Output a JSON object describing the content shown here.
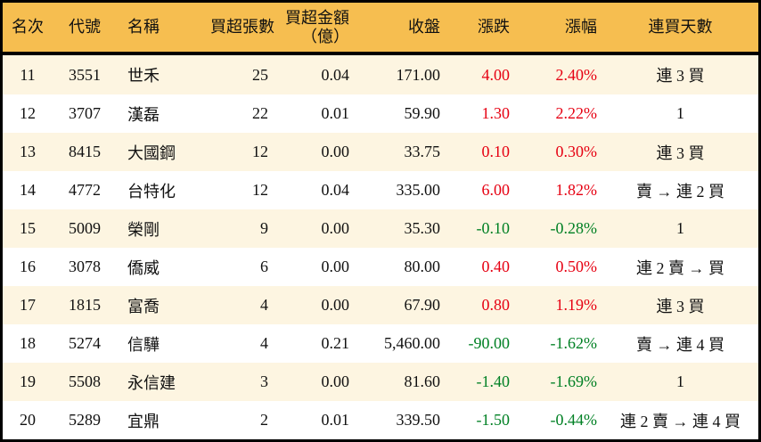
{
  "colors": {
    "up": "#e60012",
    "down": "#008024",
    "header_bg": "#f6be50",
    "row_alt_bg": "#fdf5e1",
    "border": "#000000"
  },
  "chart_data": {
    "type": "table",
    "columns": [
      {
        "key": "rank",
        "label": "名次"
      },
      {
        "key": "code",
        "label": "代號"
      },
      {
        "key": "name",
        "label": "名稱"
      },
      {
        "key": "volume",
        "label": "買超張數"
      },
      {
        "key": "amount",
        "label": "買超金額",
        "label2": "（億）"
      },
      {
        "key": "close",
        "label": "收盤"
      },
      {
        "key": "change",
        "label": "漲跌"
      },
      {
        "key": "pct",
        "label": "漲幅"
      },
      {
        "key": "days",
        "label": "連買天數"
      }
    ],
    "rows": [
      {
        "rank": "11",
        "code": "3551",
        "name": "世禾",
        "volume": "25",
        "amount": "0.04",
        "close": "171.00",
        "change": "4.00",
        "pct": "2.40%",
        "days": "連 3 買",
        "trend": "up"
      },
      {
        "rank": "12",
        "code": "3707",
        "name": "漢磊",
        "volume": "22",
        "amount": "0.01",
        "close": "59.90",
        "change": "1.30",
        "pct": "2.22%",
        "days": "1",
        "trend": "up"
      },
      {
        "rank": "13",
        "code": "8415",
        "name": "大國鋼",
        "volume": "12",
        "amount": "0.00",
        "close": "33.75",
        "change": "0.10",
        "pct": "0.30%",
        "days": "連 3 買",
        "trend": "up"
      },
      {
        "rank": "14",
        "code": "4772",
        "name": "台特化",
        "volume": "12",
        "amount": "0.04",
        "close": "335.00",
        "change": "6.00",
        "pct": "1.82%",
        "days": "賣 → 連 2 買",
        "trend": "up"
      },
      {
        "rank": "15",
        "code": "5009",
        "name": "榮剛",
        "volume": "9",
        "amount": "0.00",
        "close": "35.30",
        "change": "-0.10",
        "pct": "-0.28%",
        "days": "1",
        "trend": "down"
      },
      {
        "rank": "16",
        "code": "3078",
        "name": "僑威",
        "volume": "6",
        "amount": "0.00",
        "close": "80.00",
        "change": "0.40",
        "pct": "0.50%",
        "days": "連 2 賣 → 買",
        "trend": "up"
      },
      {
        "rank": "17",
        "code": "1815",
        "name": "富喬",
        "volume": "4",
        "amount": "0.00",
        "close": "67.90",
        "change": "0.80",
        "pct": "1.19%",
        "days": "連 3 買",
        "trend": "up"
      },
      {
        "rank": "18",
        "code": "5274",
        "name": "信驊",
        "volume": "4",
        "amount": "0.21",
        "close": "5,460.00",
        "change": "-90.00",
        "pct": "-1.62%",
        "days": "賣 → 連 4 買",
        "trend": "down"
      },
      {
        "rank": "19",
        "code": "5508",
        "name": "永信建",
        "volume": "3",
        "amount": "0.00",
        "close": "81.60",
        "change": "-1.40",
        "pct": "-1.69%",
        "days": "1",
        "trend": "down"
      },
      {
        "rank": "20",
        "code": "5289",
        "name": "宜鼎",
        "volume": "2",
        "amount": "0.01",
        "close": "339.50",
        "change": "-1.50",
        "pct": "-0.44%",
        "days": "連 2 賣 → 連 4 買",
        "trend": "down"
      }
    ]
  }
}
